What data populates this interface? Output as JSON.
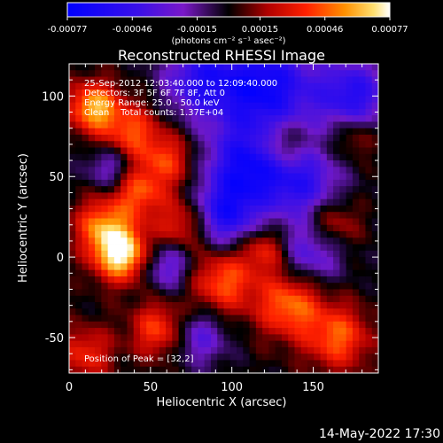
{
  "chart_data": {
    "type": "heatmap",
    "title": "Reconstructed RHESSI Image",
    "xlabel": "Heliocentric X (arcsec)",
    "ylabel": "Heliocentric Y (arcsec)",
    "xlim": [
      0,
      190
    ],
    "ylim": [
      -72,
      120
    ],
    "x_ticks": [
      0,
      50,
      100,
      150
    ],
    "y_ticks": [
      -50,
      0,
      50,
      100
    ],
    "colorbar": {
      "min": -0.00077,
      "max": 0.00077,
      "ticks": [
        "-0.00077",
        "-0.00046",
        "-0.00015",
        "0.00015",
        "0.00046",
        "0.00077"
      ],
      "unit_label": "(photons cm⁻² s⁻¹ asec⁻²)"
    },
    "annotations": [
      "25-Sep-2012 12:03:40.000 to 12:09:40.000",
      "Detectors: 3F 5F 6F 7F 8F, Att 0",
      "Energy Range: 25.0 - 50.0 keV",
      "Clean    Total counts: 1.37E+04"
    ],
    "peak_label": "Position of Peak = [32,2]",
    "peak": [
      32,
      2
    ]
  },
  "footer_date": "14-May-2022 17:30"
}
